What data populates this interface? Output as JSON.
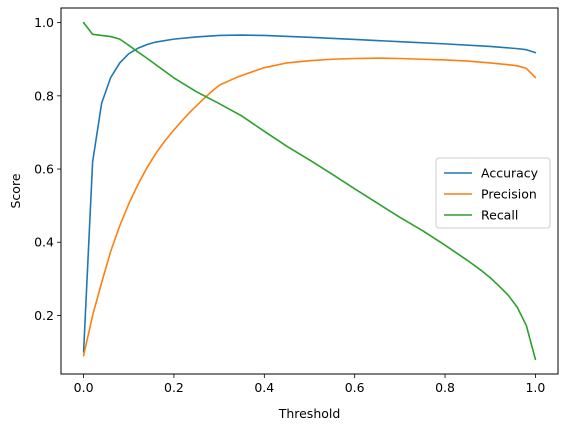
{
  "chart_data": {
    "type": "line",
    "title": "",
    "xlabel": "Threshold",
    "ylabel": "Score",
    "xlim": [
      -0.05,
      1.05
    ],
    "ylim": [
      0.04,
      1.04
    ],
    "xticks": [
      0.0,
      0.2,
      0.4,
      0.6,
      0.8,
      1.0
    ],
    "xtick_labels": [
      "0.0",
      "0.2",
      "0.4",
      "0.6",
      "0.8",
      "1.0"
    ],
    "yticks": [
      0.2,
      0.4,
      0.6,
      0.8,
      1.0
    ],
    "ytick_labels": [
      "0.2",
      "0.4",
      "0.6",
      "0.8",
      "1.0"
    ],
    "grid": false,
    "legend_position": "center-right",
    "series": [
      {
        "name": "Accuracy",
        "color": "#1f77b4",
        "x": [
          0.0,
          0.02,
          0.04,
          0.06,
          0.08,
          0.1,
          0.12,
          0.14,
          0.16,
          0.2,
          0.25,
          0.3,
          0.35,
          0.4,
          0.5,
          0.6,
          0.7,
          0.8,
          0.9,
          0.96,
          0.98,
          1.0
        ],
        "y": [
          0.1,
          0.62,
          0.78,
          0.85,
          0.89,
          0.915,
          0.93,
          0.94,
          0.947,
          0.955,
          0.961,
          0.965,
          0.966,
          0.965,
          0.96,
          0.954,
          0.948,
          0.942,
          0.935,
          0.929,
          0.926,
          0.918
        ]
      },
      {
        "name": "Precision",
        "color": "#ff7f0e",
        "x": [
          0.0,
          0.02,
          0.04,
          0.06,
          0.08,
          0.1,
          0.12,
          0.14,
          0.16,
          0.18,
          0.2,
          0.22,
          0.24,
          0.26,
          0.28,
          0.3,
          0.32,
          0.34,
          0.36,
          0.4,
          0.45,
          0.5,
          0.55,
          0.6,
          0.65,
          0.7,
          0.75,
          0.8,
          0.85,
          0.9,
          0.94,
          0.96,
          0.98,
          1.0
        ],
        "y": [
          0.09,
          0.2,
          0.29,
          0.375,
          0.445,
          0.505,
          0.557,
          0.603,
          0.643,
          0.677,
          0.707,
          0.735,
          0.761,
          0.785,
          0.808,
          0.829,
          0.84,
          0.851,
          0.86,
          0.877,
          0.89,
          0.896,
          0.9,
          0.902,
          0.903,
          0.902,
          0.9,
          0.898,
          0.895,
          0.89,
          0.885,
          0.882,
          0.875,
          0.85
        ]
      },
      {
        "name": "Recall",
        "color": "#2ca02c",
        "x": [
          0.0,
          0.02,
          0.04,
          0.06,
          0.08,
          0.1,
          0.12,
          0.14,
          0.16,
          0.2,
          0.25,
          0.3,
          0.35,
          0.4,
          0.45,
          0.5,
          0.55,
          0.6,
          0.65,
          0.7,
          0.75,
          0.8,
          0.85,
          0.88,
          0.9,
          0.92,
          0.94,
          0.96,
          0.98,
          1.0
        ],
        "y": [
          1.0,
          0.968,
          0.965,
          0.962,
          0.955,
          0.938,
          0.92,
          0.903,
          0.885,
          0.849,
          0.811,
          0.779,
          0.745,
          0.703,
          0.662,
          0.625,
          0.586,
          0.546,
          0.507,
          0.468,
          0.432,
          0.392,
          0.35,
          0.323,
          0.303,
          0.28,
          0.255,
          0.222,
          0.172,
          0.08
        ]
      }
    ]
  }
}
